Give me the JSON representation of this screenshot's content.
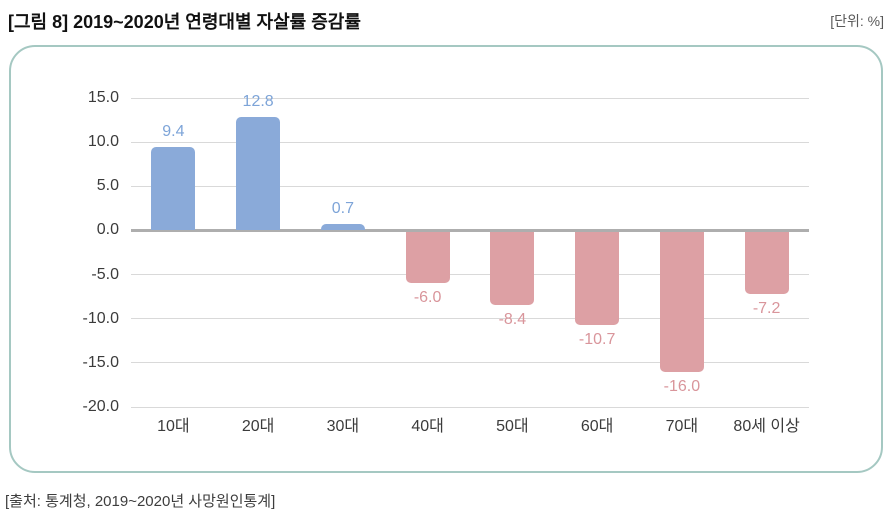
{
  "page": {
    "title": "[그림 8] 2019~2020년 연령대별 자살률 증감률",
    "unit_label": "[단위:  %]",
    "source": "[출처:  통계청, 2019~2020년 사망원인통계]"
  },
  "colors": {
    "positive_bar": "#8aaad9",
    "negative_bar": "#dda0a4",
    "positive_value_label": "#7da4d8",
    "negative_value_label": "#d9959b",
    "gridline": "#d9d9d9",
    "zero_line": "#aeaeae",
    "box_border": "#a5c8c2",
    "axis_text": "#3b3b3b"
  },
  "chart_data": {
    "type": "bar",
    "title": "[그림 8] 2019~2020년 연령대별 자살률 증감률",
    "unit": "%",
    "categories": [
      "10대",
      "20대",
      "30대",
      "40대",
      "50대",
      "60대",
      "70대",
      "80세 이상"
    ],
    "values": [
      9.4,
      12.8,
      0.7,
      -6.0,
      -8.4,
      -10.7,
      -16.0,
      -7.2
    ],
    "value_labels": [
      "9.4",
      "12.8",
      "0.7",
      "-6.0",
      "-8.4",
      "-10.7",
      "-16.0",
      "-7.2"
    ],
    "y_ticks": [
      15.0,
      10.0,
      5.0,
      0.0,
      -5.0,
      -10.0,
      -15.0,
      -20.0
    ],
    "y_tick_labels": [
      "15.0",
      "10.0",
      "5.0",
      "0.0",
      "-5.0",
      "-10.0",
      "-15.0",
      "-20.0"
    ],
    "ylim": [
      -20.0,
      15.0
    ],
    "grid": true,
    "legend": false,
    "xlabel": "",
    "ylabel": ""
  }
}
